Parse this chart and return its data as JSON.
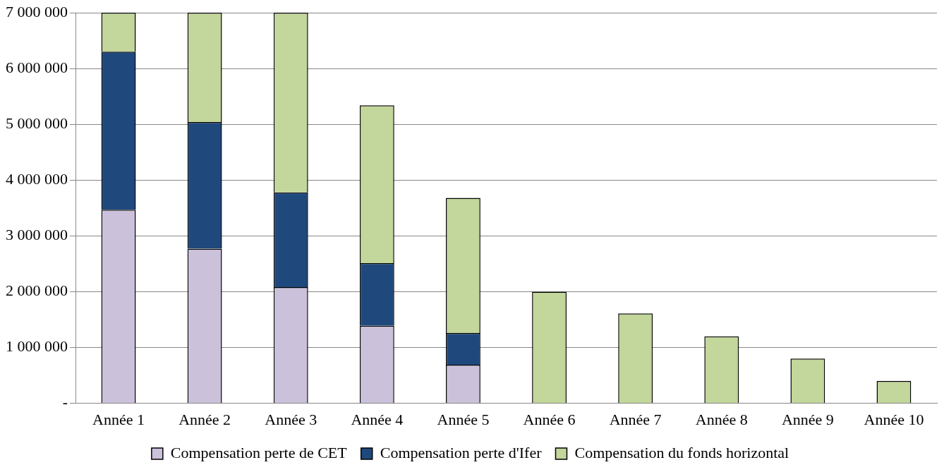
{
  "chart_data": {
    "type": "bar",
    "stacked": true,
    "categories": [
      "Année 1",
      "Année 2",
      "Année 3",
      "Année 4",
      "Année 5",
      "Année 6",
      "Année 7",
      "Année 8",
      "Année 9",
      "Année 10"
    ],
    "series": [
      {
        "name": "Compensation perte de CET",
        "color": "#ccc1da",
        "values": [
          3470000,
          2770000,
          2080000,
          1390000,
          690000,
          null,
          null,
          null,
          null,
          null
        ]
      },
      {
        "name": "Compensation perte d'Ifer",
        "color": "#1f497d",
        "values": [
          2830000,
          2270000,
          1700000,
          1120000,
          570000,
          null,
          null,
          null,
          null,
          null
        ]
      },
      {
        "name": "Compensation du fonds horizontal",
        "color": "#c3d69b",
        "values": [
          700000,
          1960000,
          3220000,
          2830000,
          2420000,
          2000000,
          1610000,
          1200000,
          800000,
          400000
        ]
      }
    ],
    "ylim": [
      0,
      7000000
    ],
    "yticks": [
      {
        "value": 0,
        "label": "-"
      },
      {
        "value": 1000000,
        "label": "1 000 000"
      },
      {
        "value": 2000000,
        "label": "2 000 000"
      },
      {
        "value": 3000000,
        "label": "3 000 000"
      },
      {
        "value": 4000000,
        "label": "4 000 000"
      },
      {
        "value": 5000000,
        "label": "5 000 000"
      },
      {
        "value": 6000000,
        "label": "6 000 000"
      },
      {
        "value": 7000000,
        "label": "7 000 000"
      }
    ],
    "grid": "y",
    "legend": "bottom"
  }
}
